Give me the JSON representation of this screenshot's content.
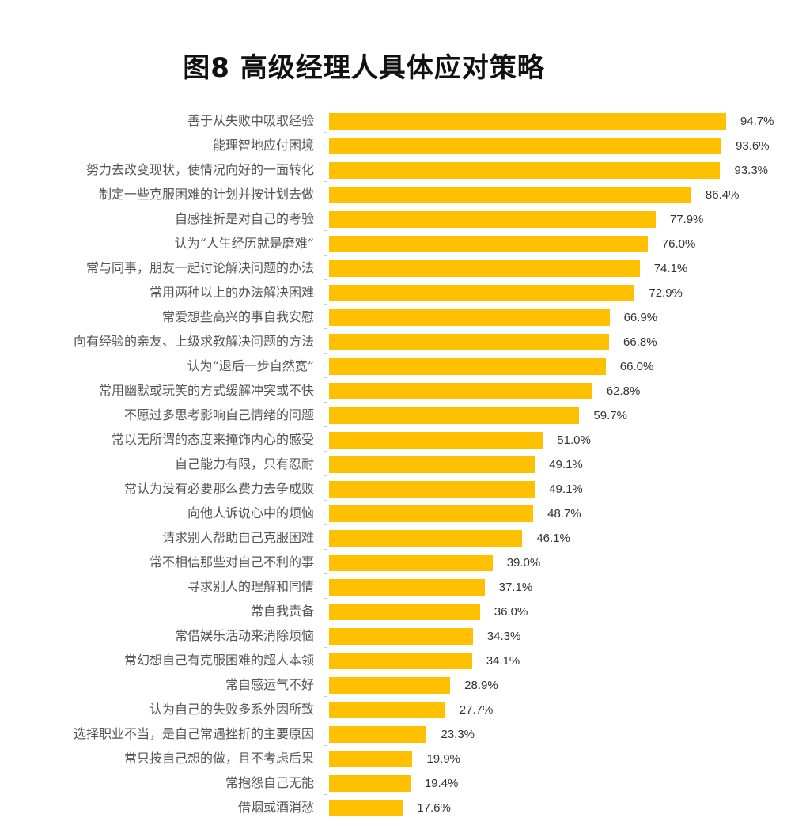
{
  "title": "图8  高级经理人具体应对策略",
  "colors": {
    "bar": "#FFC000",
    "axis": "#C8C8C8",
    "label_text": "#555555",
    "value_text": "#333333"
  },
  "chart_data": {
    "type": "bar",
    "orientation": "horizontal",
    "title": "图8  高级经理人具体应对策略",
    "xlabel": "",
    "ylabel": "",
    "grid": false,
    "legend": null,
    "value_format": "percent",
    "categories": [
      "善于从失败中吸取经验",
      "能理智地应付困境",
      "努力去改变现状，使情况向好的一面转化",
      "制定一些克服困难的计划并按计划去做",
      "自感挫折是对自己的考验",
      "认为“人生经历就是磨难”",
      "常与同事，朋友一起讨论解决问题的办法",
      "常用两种以上的办法解决困难",
      "常爱想些高兴的事自我安慰",
      "向有经验的亲友、上级求教解决问题的方法",
      "认为“退后一步自然宽”",
      "常用幽默或玩笑的方式缓解冲突或不快",
      "不愿过多思考影响自己情绪的问题",
      "常以无所谓的态度来掩饰内心的感受",
      "自己能力有限，只有忍耐",
      "常认为没有必要那么费力去争成败",
      "向他人诉说心中的烦恼",
      "请求别人帮助自己克服困难",
      "常不相信那些对自己不利的事",
      "寻求别人的理解和同情",
      "常自我责备",
      "常借娱乐活动来消除烦恼",
      "常幻想自己有克服困难的超人本领",
      "常自感运气不好",
      "认为自己的失败多系外因所致",
      "选择职业不当，是自己常遇挫折的主要原因",
      "常只按自己想的做，且不考虑后果",
      "常抱怨自己无能",
      "借烟或酒消愁"
    ],
    "values": [
      94.7,
      93.6,
      93.3,
      86.4,
      77.9,
      76.0,
      74.1,
      72.9,
      66.9,
      66.8,
      66.0,
      62.8,
      59.7,
      51.0,
      49.1,
      49.1,
      48.7,
      46.1,
      39.0,
      37.1,
      36.0,
      34.3,
      34.1,
      28.9,
      27.7,
      23.3,
      19.9,
      19.4,
      17.6
    ],
    "value_labels": [
      "94.7%",
      "93.6%",
      "93.3%",
      "86.4%",
      "77.9%",
      "76.0%",
      "74.1%",
      "72.9%",
      "66.9%",
      "66.8%",
      "66.0%",
      "62.8%",
      "59.7%",
      "51.0%",
      "49.1%",
      "49.1%",
      "48.7%",
      "46.1%",
      "39.0%",
      "37.1%",
      "36.0%",
      "34.3%",
      "34.1%",
      "28.9%",
      "27.7%",
      "23.3%",
      "19.9%",
      "19.4%",
      "17.6%"
    ],
    "xlim": [
      0,
      100
    ]
  }
}
